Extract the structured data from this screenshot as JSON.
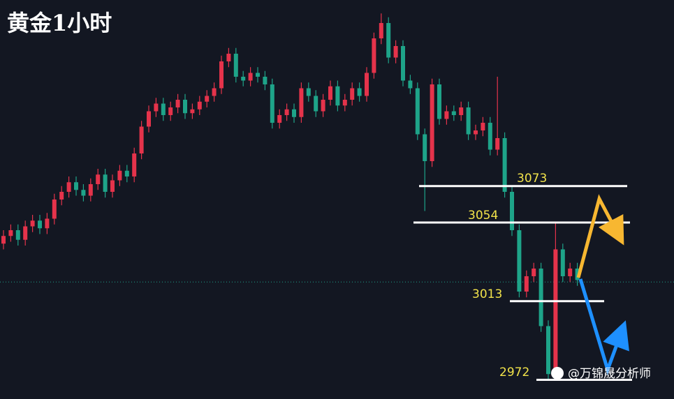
{
  "chart_data": {
    "type": "candlestick",
    "title": "黄金1小时",
    "watermark": "@万锦晟分析师",
    "ylim": [
      2962,
      3170
    ],
    "colors": {
      "up": "#e5334b",
      "down": "#1ea489"
    },
    "price_line": 3023,
    "levels": [
      3073,
      3054,
      3013,
      2972
    ],
    "open": [
      3043,
      3047,
      3050,
      3045,
      3052,
      3055,
      3051,
      3056,
      3066,
      3070,
      3075,
      3071,
      3068,
      3074,
      3079,
      3070,
      3076,
      3081,
      3078,
      3090,
      3104,
      3112,
      3116,
      3110,
      3114,
      3118,
      3111,
      3113,
      3117,
      3120,
      3124,
      3138,
      3142,
      3130,
      3128,
      3132,
      3130,
      3126,
      3106,
      3110,
      3113,
      3109,
      3124,
      3120,
      3112,
      3118,
      3125,
      3115,
      3118,
      3124,
      3120,
      3132,
      3150,
      3158,
      3140,
      3146,
      3128,
      3124,
      3100,
      3086,
      3126,
      3108,
      3112,
      3110,
      3114,
      3100,
      3102,
      3106,
      3092,
      3098,
      3070,
      3050,
      3018,
      3026,
      3030,
      3000,
      2975,
      3040,
      3026,
      3030
    ],
    "high": [
      3050,
      3053,
      3053,
      3055,
      3058,
      3058,
      3059,
      3069,
      3073,
      3078,
      3078,
      3074,
      3077,
      3082,
      3082,
      3079,
      3084,
      3084,
      3093,
      3107,
      3115,
      3119,
      3119,
      3117,
      3121,
      3121,
      3116,
      3120,
      3123,
      3127,
      3141,
      3145,
      3145,
      3133,
      3135,
      3135,
      3133,
      3129,
      3113,
      3116,
      3116,
      3127,
      3127,
      3123,
      3121,
      3128,
      3128,
      3121,
      3127,
      3127,
      3135,
      3153,
      3163,
      3161,
      3149,
      3149,
      3131,
      3127,
      3103,
      3129,
      3129,
      3115,
      3115,
      3117,
      3117,
      3105,
      3109,
      3109,
      3130,
      3101,
      3073,
      3053,
      3029,
      3033,
      3033,
      3003,
      3054,
      3043,
      3033,
      3033
    ],
    "low": [
      3040,
      3044,
      3042,
      3042,
      3049,
      3048,
      3048,
      3053,
      3063,
      3067,
      3068,
      3065,
      3065,
      3071,
      3067,
      3067,
      3073,
      3075,
      3075,
      3087,
      3101,
      3109,
      3107,
      3107,
      3111,
      3108,
      3108,
      3110,
      3114,
      3117,
      3121,
      3135,
      3127,
      3125,
      3125,
      3127,
      3123,
      3103,
      3103,
      3107,
      3106,
      3106,
      3117,
      3109,
      3109,
      3115,
      3112,
      3112,
      3115,
      3117,
      3117,
      3129,
      3147,
      3137,
      3137,
      3125,
      3121,
      3097,
      3060,
      3083,
      3105,
      3105,
      3107,
      3107,
      3097,
      3097,
      3099,
      3089,
      3089,
      3067,
      3047,
      3015,
      3015,
      3023,
      2997,
      2972,
      2972,
      3023,
      3023,
      3021
    ],
    "close": [
      3047,
      3050,
      3045,
      3052,
      3055,
      3051,
      3056,
      3066,
      3070,
      3075,
      3071,
      3068,
      3074,
      3079,
      3070,
      3076,
      3081,
      3078,
      3090,
      3104,
      3112,
      3116,
      3110,
      3114,
      3118,
      3111,
      3113,
      3117,
      3120,
      3124,
      3138,
      3142,
      3130,
      3128,
      3132,
      3130,
      3126,
      3106,
      3110,
      3113,
      3109,
      3124,
      3120,
      3112,
      3118,
      3125,
      3115,
      3118,
      3124,
      3120,
      3132,
      3150,
      3158,
      3140,
      3146,
      3128,
      3124,
      3100,
      3086,
      3126,
      3108,
      3112,
      3110,
      3114,
      3100,
      3102,
      3106,
      3092,
      3098,
      3070,
      3050,
      3018,
      3026,
      3030,
      3000,
      2975,
      3040,
      3026,
      3030,
      3024
    ]
  }
}
